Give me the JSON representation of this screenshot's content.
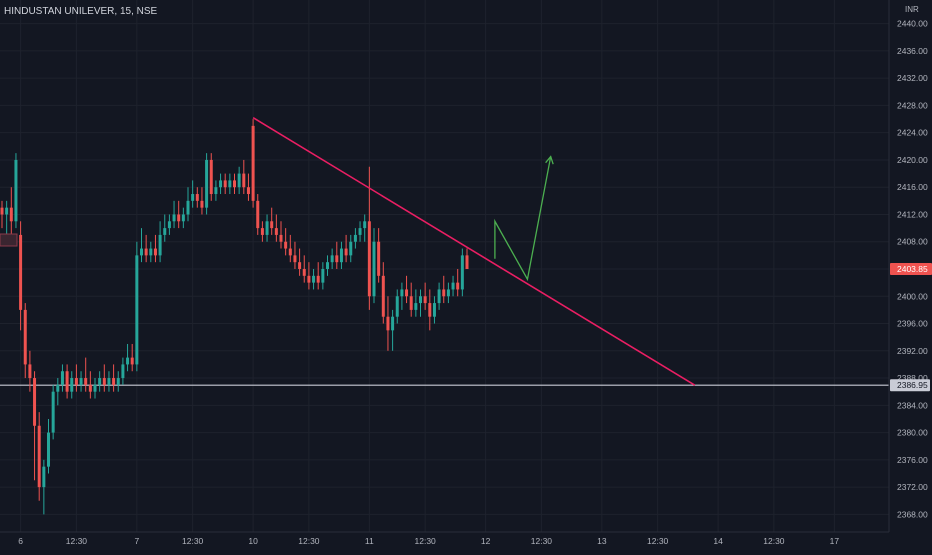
{
  "header": {
    "symbol_text": "HINDUSTAN UNILEVER, 15, NSE"
  },
  "price_axis": {
    "currency": "INR",
    "last_price_label": "2403.85",
    "level_label": "2386.95"
  },
  "colors": {
    "background": "#131722",
    "up": "#26a69a",
    "down": "#ef5350",
    "trendline": "#e91e63",
    "projection": "#4caf50",
    "level": "#c9ccd6",
    "axis_text": "#b2b5be"
  },
  "chart_data": {
    "type": "candlestick",
    "title": "HINDUSTAN UNILEVER, 15, NSE",
    "ylim": [
      2366,
      2442
    ],
    "yticks": [
      2368,
      2372,
      2376,
      2380,
      2384,
      2388,
      2392,
      2396,
      2400,
      2404,
      2408,
      2412,
      2416,
      2420,
      2424,
      2428,
      2432,
      2436,
      2440
    ],
    "ytick_labels": [
      "2368.00",
      "2372.00",
      "2376.00",
      "2380.00",
      "2384.00",
      "2388.00",
      "2392.00",
      "2396.00",
      "2400.00",
      "2404.00",
      "2408.00",
      "2412.00",
      "2416.00",
      "2420.00",
      "2424.00",
      "2428.00",
      "2432.00",
      "2436.00",
      "2440.00"
    ],
    "x_labels": [
      {
        "slot": 4,
        "label": "6"
      },
      {
        "slot": 16,
        "label": "12:30"
      },
      {
        "slot": 29,
        "label": "7"
      },
      {
        "slot": 41,
        "label": "12:30"
      },
      {
        "slot": 54,
        "label": "10"
      },
      {
        "slot": 66,
        "label": "12:30"
      },
      {
        "slot": 79,
        "label": "11"
      },
      {
        "slot": 91,
        "label": "12:30"
      },
      {
        "slot": 104,
        "label": "12"
      },
      {
        "slot": 116,
        "label": "12:30"
      },
      {
        "slot": 129,
        "label": "13"
      },
      {
        "slot": 141,
        "label": "12:30"
      },
      {
        "slot": 154,
        "label": "14"
      },
      {
        "slot": 166,
        "label": "12:30"
      },
      {
        "slot": 179,
        "label": "17"
      }
    ],
    "candles": [
      [
        2413,
        2414,
        2410,
        2412
      ],
      [
        2412,
        2414,
        2409,
        2413
      ],
      [
        2413,
        2416,
        2408,
        2411
      ],
      [
        2411,
        2421,
        2410,
        2420
      ],
      [
        2409,
        2411,
        2395,
        2398
      ],
      [
        2398,
        2399,
        2388,
        2390
      ],
      [
        2390,
        2392,
        2386,
        2388
      ],
      [
        2388,
        2389,
        2373,
        2381
      ],
      [
        2381,
        2383,
        2370,
        2372
      ],
      [
        2372,
        2376,
        2368,
        2375
      ],
      [
        2375,
        2382,
        2374,
        2380
      ],
      [
        2380,
        2387,
        2379,
        2386
      ],
      [
        2386,
        2388,
        2384,
        2387
      ],
      [
        2387,
        2390,
        2386,
        2389
      ],
      [
        2389,
        2390,
        2385,
        2386
      ],
      [
        2386,
        2389,
        2385,
        2388
      ],
      [
        2388,
        2390,
        2386,
        2387
      ],
      [
        2387,
        2389,
        2386,
        2388
      ],
      [
        2388,
        2391,
        2386,
        2387
      ],
      [
        2387,
        2389,
        2385,
        2386
      ],
      [
        2386,
        2388,
        2385,
        2387
      ],
      [
        2387,
        2389,
        2386,
        2388
      ],
      [
        2388,
        2390,
        2386,
        2387
      ],
      [
        2387,
        2389,
        2386,
        2388
      ],
      [
        2388,
        2390,
        2386,
        2387
      ],
      [
        2387,
        2389,
        2386,
        2388
      ],
      [
        2388,
        2391,
        2387,
        2390
      ],
      [
        2390,
        2393,
        2389,
        2391
      ],
      [
        2391,
        2393,
        2389,
        2390
      ],
      [
        2390,
        2408,
        2389,
        2406
      ],
      [
        2406,
        2410,
        2405,
        2407
      ],
      [
        2407,
        2409,
        2405,
        2406
      ],
      [
        2406,
        2408,
        2405,
        2407
      ],
      [
        2407,
        2409,
        2405,
        2406
      ],
      [
        2406,
        2411,
        2405,
        2409
      ],
      [
        2409,
        2412,
        2408,
        2410
      ],
      [
        2410,
        2412,
        2409,
        2411
      ],
      [
        2411,
        2414,
        2410,
        2412
      ],
      [
        2412,
        2414,
        2410,
        2411
      ],
      [
        2411,
        2413,
        2410,
        2412
      ],
      [
        2412,
        2416,
        2411,
        2414
      ],
      [
        2414,
        2417,
        2413,
        2415
      ],
      [
        2415,
        2416,
        2413,
        2414
      ],
      [
        2414,
        2416,
        2412,
        2413
      ],
      [
        2413,
        2421,
        2412,
        2420
      ],
      [
        2420,
        2421,
        2414,
        2415
      ],
      [
        2415,
        2417,
        2414,
        2416
      ],
      [
        2416,
        2418,
        2415,
        2417
      ],
      [
        2417,
        2418,
        2415,
        2416
      ],
      [
        2416,
        2418,
        2415,
        2417
      ],
      [
        2417,
        2418,
        2415,
        2416
      ],
      [
        2416,
        2419,
        2415,
        2418
      ],
      [
        2418,
        2420,
        2415,
        2416
      ],
      [
        2416,
        2418,
        2414,
        2415
      ],
      [
        2425,
        2426,
        2413,
        2414
      ],
      [
        2414,
        2415,
        2409,
        2410
      ],
      [
        2410,
        2411,
        2408,
        2409
      ],
      [
        2409,
        2412,
        2408,
        2411
      ],
      [
        2411,
        2413,
        2409,
        2410
      ],
      [
        2410,
        2412,
        2408,
        2409
      ],
      [
        2409,
        2411,
        2407,
        2408
      ],
      [
        2408,
        2410,
        2406,
        2407
      ],
      [
        2407,
        2409,
        2405,
        2406
      ],
      [
        2406,
        2408,
        2404,
        2405
      ],
      [
        2405,
        2407,
        2403,
        2404
      ],
      [
        2404,
        2406,
        2402,
        2403
      ],
      [
        2403,
        2405,
        2401,
        2402
      ],
      [
        2402,
        2404,
        2401,
        2403
      ],
      [
        2403,
        2405,
        2401,
        2402
      ],
      [
        2402,
        2405,
        2401,
        2404
      ],
      [
        2404,
        2406,
        2403,
        2405
      ],
      [
        2405,
        2407,
        2404,
        2406
      ],
      [
        2406,
        2408,
        2404,
        2405
      ],
      [
        2405,
        2408,
        2404,
        2407
      ],
      [
        2407,
        2409,
        2405,
        2406
      ],
      [
        2406,
        2409,
        2405,
        2408
      ],
      [
        2408,
        2410,
        2407,
        2409
      ],
      [
        2409,
        2411,
        2408,
        2410
      ],
      [
        2410,
        2412,
        2408,
        2411
      ],
      [
        2411,
        2419,
        2398,
        2400
      ],
      [
        2400,
        2410,
        2399,
        2408
      ],
      [
        2408,
        2410,
        2402,
        2403
      ],
      [
        2403,
        2405,
        2396,
        2397
      ],
      [
        2397,
        2400,
        2392,
        2395
      ],
      [
        2395,
        2398,
        2392,
        2397
      ],
      [
        2397,
        2401,
        2396,
        2400
      ],
      [
        2400,
        2402,
        2398,
        2401
      ],
      [
        2401,
        2403,
        2399,
        2400
      ],
      [
        2400,
        2402,
        2397,
        2398
      ],
      [
        2398,
        2401,
        2397,
        2399
      ],
      [
        2399,
        2401,
        2397,
        2400
      ],
      [
        2400,
        2402,
        2398,
        2399
      ],
      [
        2399,
        2401,
        2395,
        2397
      ],
      [
        2397,
        2400,
        2396,
        2399
      ],
      [
        2399,
        2402,
        2398,
        2401
      ],
      [
        2401,
        2403,
        2399,
        2400
      ],
      [
        2400,
        2402,
        2399,
        2401
      ],
      [
        2401,
        2403,
        2400,
        2402
      ],
      [
        2402,
        2404,
        2400,
        2401
      ],
      [
        2401,
        2407,
        2400,
        2406
      ],
      [
        2406,
        2407,
        2404,
        2404
      ]
    ],
    "level": 2386.95,
    "trendline": [
      {
        "slot": 54,
        "price": 2426.2
      },
      {
        "slot": 149,
        "price": 2386.95
      }
    ],
    "projection": [
      {
        "slot": 106,
        "price": 2405.5
      },
      {
        "slot": 106,
        "price": 2411
      },
      {
        "slot": 113,
        "price": 2402.5
      },
      {
        "slot": 118,
        "price": 2420.5
      }
    ]
  }
}
